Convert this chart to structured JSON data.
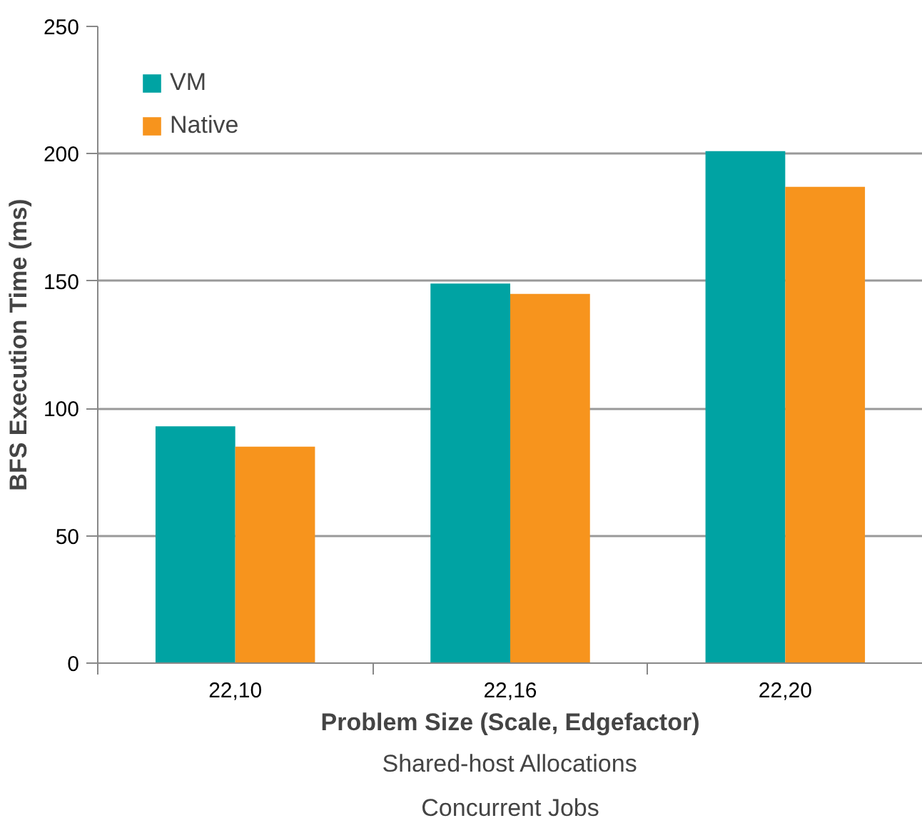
{
  "chart_data": {
    "type": "bar",
    "xlabel": "Problem Size (Scale, Edgefactor)",
    "ylabel": "BFS Execution Time (ms)",
    "categories": [
      "22,10",
      "22,16",
      "22,20"
    ],
    "series": [
      {
        "name": "VM",
        "color": "#00a3a3",
        "values": [
          93,
          149,
          201
        ]
      },
      {
        "name": "Native",
        "color": "#f7941d",
        "values": [
          85,
          145,
          187
        ]
      }
    ],
    "ylim": [
      0,
      250
    ],
    "yticks": [
      0,
      50,
      100,
      150,
      200,
      250
    ],
    "grid": "y",
    "legend": "top left",
    "annotations": [
      "Shared-host Allocations",
      "Concurrent Jobs"
    ]
  }
}
